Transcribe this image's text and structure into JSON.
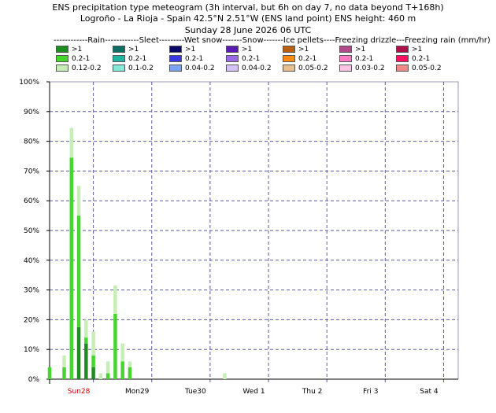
{
  "header": {
    "line1": "ENS precipitation type meteogram (3h interval, but 6h on day 7, no data beyond T+168h)",
    "line2": "Logroño - La Rioja - Spain 42.5°N 2.51°W (ENS land point) ENS height: 460 m",
    "line3": "Sunday 28 June 2026 06 UTC"
  },
  "legend": {
    "header": "------------Rain------------Sleet---------Wet snow-------Snow-------Ice pellets----Freezing drizzle---Freezing rain (mm/hr)",
    "categories": [
      {
        "name": "Rain",
        "items": [
          {
            "label": ">1",
            "color": "#1e8c1e"
          },
          {
            "label": "0.2-1",
            "color": "#44d62c"
          },
          {
            "label": "0.12-0.2",
            "color": "#c8eeb8"
          }
        ]
      },
      {
        "name": "Sleet",
        "items": [
          {
            "label": ">1",
            "color": "#0f6e62"
          },
          {
            "label": "0.2-1",
            "color": "#1fb5a0"
          },
          {
            "label": "0.1-0.2",
            "color": "#86e8d6"
          }
        ]
      },
      {
        "name": "Wet snow",
        "items": [
          {
            "label": ">1",
            "color": "#0a0a66"
          },
          {
            "label": "0.2-1",
            "color": "#3a3ae0"
          },
          {
            "label": "0.04-0.2",
            "color": "#7aa4f0"
          }
        ]
      },
      {
        "name": "Snow",
        "items": [
          {
            "label": ">1",
            "color": "#5a1ab4"
          },
          {
            "label": "0.2-1",
            "color": "#9a6ae6"
          },
          {
            "label": "0.04-0.2",
            "color": "#d4c2f4"
          }
        ]
      },
      {
        "name": "Ice pellets",
        "items": [
          {
            "label": ">1",
            "color": "#b86010"
          },
          {
            "label": "0.2-1",
            "color": "#ff8a10"
          },
          {
            "label": "0.05-0.2",
            "color": "#e8c090"
          }
        ]
      },
      {
        "name": "Freezing drizzle",
        "items": [
          {
            "label": ">1",
            "color": "#b04a8a"
          },
          {
            "label": "0.2-1",
            "color": "#ff78c0"
          },
          {
            "label": "0.03-0.2",
            "color": "#ffc4e4"
          }
        ]
      },
      {
        "name": "Freezing rain",
        "items": [
          {
            "label": ">1",
            "color": "#b0104a"
          },
          {
            "label": "0.2-1",
            "color": "#ff1060"
          },
          {
            "label": "0.05-0.2",
            "color": "#f08888"
          }
        ]
      }
    ]
  },
  "chart_data": {
    "type": "bar",
    "stacked": true,
    "ylim": [
      0,
      100
    ],
    "yticks": [
      0,
      10,
      20,
      30,
      40,
      50,
      60,
      70,
      80,
      90,
      100
    ],
    "ytick_suffix": "%",
    "xlim": [
      0,
      168
    ],
    "x_unit": "hours from Sunday 28 June 2026 06 UTC",
    "day_ticks": [
      {
        "label": "Sun28",
        "x": 12,
        "color": "#cc0000"
      },
      {
        "label": "Mon29",
        "x": 36,
        "color": "#000000"
      },
      {
        "label": "Tue30",
        "x": 60,
        "color": "#000000"
      },
      {
        "label": "Wed 1",
        "x": 84,
        "color": "#000000"
      },
      {
        "label": "Thu 2",
        "x": 108,
        "color": "#000000"
      },
      {
        "label": "Fri 3",
        "x": 132,
        "color": "#000000"
      },
      {
        "label": "Sat 4",
        "x": 156,
        "color": "#000000"
      }
    ],
    "grid_x_hours": [
      18,
      42,
      66,
      90,
      114,
      138,
      162
    ],
    "grid_y": true,
    "colors": {
      "heavy": "#1e8c1e",
      "moderate": "#44d62c",
      "light": "#c8eeb8"
    },
    "x": [
      0,
      6,
      9,
      12,
      15,
      18,
      21,
      24,
      27,
      30,
      33,
      36,
      39,
      72
    ],
    "series": [
      {
        "name": ">1",
        "values": [
          0,
          0,
          0,
          17.5,
          12,
          4,
          0,
          0,
          0,
          0,
          0,
          0,
          0,
          0
        ]
      },
      {
        "name": "0.2-1",
        "values": [
          4,
          4,
          74.5,
          37.5,
          2,
          4,
          0,
          2,
          22,
          6,
          4,
          0,
          0,
          0
        ]
      },
      {
        "name": "0.12-0.2",
        "values": [
          0,
          4,
          10,
          10,
          6,
          8,
          2,
          4,
          9.5,
          6,
          2,
          0,
          0,
          2
        ]
      }
    ]
  }
}
